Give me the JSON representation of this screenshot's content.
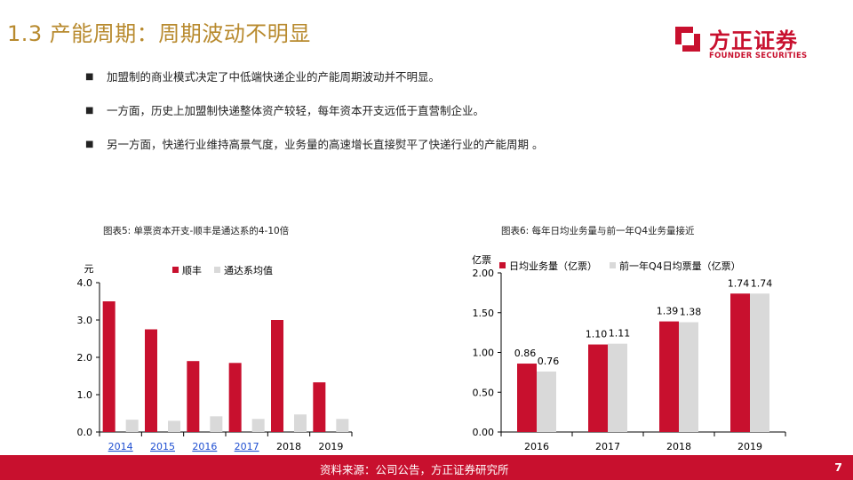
{
  "header": {
    "title": "1.3 产能周期：周期波动不明显"
  },
  "logo": {
    "cn": "方正证券",
    "en": "FOUNDER SECURITIES"
  },
  "bullets": [
    "加盟制的商业模式决定了中低端快递企业的产能周期波动并不明显。",
    "一方面，历史上加盟制快递整体资产较轻，每年资本开支远低于直营制企业。",
    "另一方面，快递行业维持高景气度，业务量的高速增长直接熨平了快递行业的产能周期 。"
  ],
  "bullet_marker": "■",
  "colors": {
    "red": "#c8102e",
    "grey": "#d9d9d9",
    "title": "#b88a2e"
  },
  "chart_data": [
    {
      "type": "bar",
      "caption": "图表5:  单票资本开支-顺丰是通达系的4-10倍",
      "ylabel": "元",
      "categories": [
        "2014",
        "2015",
        "2016",
        "2017",
        "2018",
        "2019"
      ],
      "linked_categories": [
        "2014",
        "2015",
        "2016",
        "2017"
      ],
      "series": [
        {
          "name": "顺丰",
          "color": "#c8102e",
          "values": [
            3.5,
            2.75,
            1.9,
            1.85,
            3.0,
            1.33
          ]
        },
        {
          "name": "通达系均值",
          "color": "#d9d9d9",
          "values": [
            0.33,
            0.3,
            0.42,
            0.35,
            0.47,
            0.35
          ]
        }
      ],
      "ylim": [
        0,
        4
      ],
      "yticks": [
        "0.0",
        "1.0",
        "2.0",
        "3.0",
        "4.0"
      ],
      "grid": false,
      "legend": "top"
    },
    {
      "type": "bar",
      "caption": "图表6:  每年日均业务量与前一年Q4业务量接近",
      "ylabel": "亿票",
      "categories": [
        "2016",
        "2017",
        "2018",
        "2019"
      ],
      "series": [
        {
          "name": "日均业务量（亿票）",
          "color": "#c8102e",
          "values": [
            0.86,
            1.1,
            1.39,
            1.74
          ],
          "labels": [
            "0.86",
            "1.10",
            "1.39",
            "1.74"
          ]
        },
        {
          "name": "前一年Q4日均票量（亿票）",
          "color": "#d9d9d9",
          "values": [
            0.76,
            1.11,
            1.38,
            1.74
          ],
          "labels": [
            "0.76",
            "1.11",
            "1.38",
            "1.74"
          ]
        }
      ],
      "ylim": [
        0,
        2
      ],
      "yticks": [
        "0.00",
        "0.50",
        "1.00",
        "1.50",
        "2.00"
      ],
      "grid": false,
      "legend": "top"
    }
  ],
  "footer": {
    "source": "资料来源：公司公告，方正证券研究所",
    "page": "7"
  }
}
